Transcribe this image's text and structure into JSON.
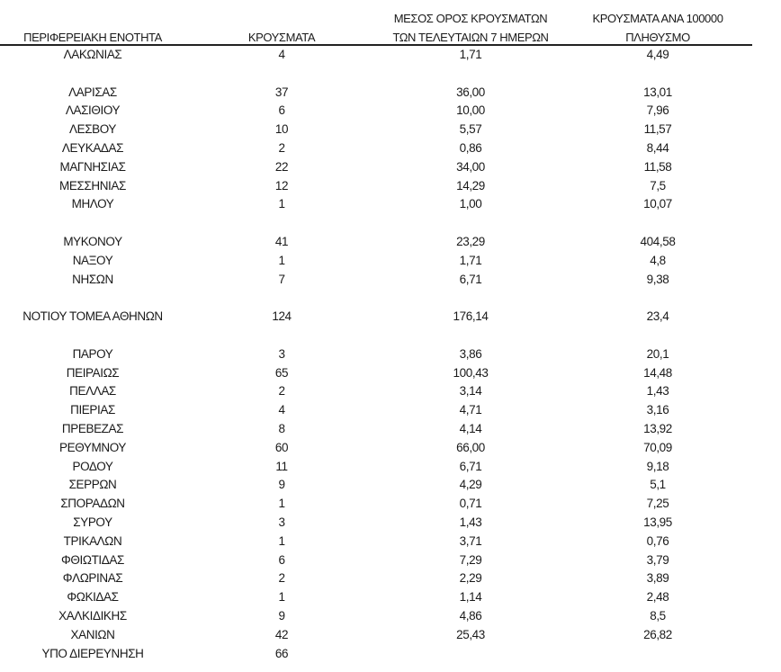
{
  "headers": {
    "region": "ΠΕΡΙΦΕΡΕΙΑΚΗ ΕΝΟΤΗΤΑ",
    "cases": "ΚΡΟΥΣΜΑΤΑ",
    "avg7_line1": "ΜΕΣΟΣ ΟΡΟΣ ΚΡΟΥΣΜΑΤΩΝ",
    "avg7_line2": "ΤΩΝ ΤΕΛΕΥΤΑΙΩΝ 7 ΗΜΕΡΩΝ",
    "per100k_line1": "ΚΡΟΥΣΜΑΤΑ ΑΝΑ 100000",
    "per100k_line2": "ΠΛΗΘΥΣΜΟ"
  },
  "rows": [
    {
      "region": "ΛΑΚΩΝΙΑΣ",
      "cases": "4",
      "avg7": "1,71",
      "per100k": "4,49"
    },
    {
      "region": "ΛΑΡΙΣΑΣ",
      "cases": "37",
      "avg7": "36,00",
      "per100k": "13,01"
    },
    {
      "region": "ΛΑΣΙΘΙΟΥ",
      "cases": "6",
      "avg7": "10,00",
      "per100k": "7,96"
    },
    {
      "region": "ΛΕΣΒΟΥ",
      "cases": "10",
      "avg7": "5,57",
      "per100k": "11,57"
    },
    {
      "region": "ΛΕΥΚΑΔΑΣ",
      "cases": "2",
      "avg7": "0,86",
      "per100k": "8,44"
    },
    {
      "region": "ΜΑΓΝΗΣΙΑΣ",
      "cases": "22",
      "avg7": "34,00",
      "per100k": "11,58"
    },
    {
      "region": "ΜΕΣΣΗΝΙΑΣ",
      "cases": "12",
      "avg7": "14,29",
      "per100k": "7,5"
    },
    {
      "region": "ΜΗΛΟΥ",
      "cases": "1",
      "avg7": "1,00",
      "per100k": "10,07"
    },
    {
      "region": "ΜΥΚΟΝΟΥ",
      "cases": "41",
      "avg7": "23,29",
      "per100k": "404,58"
    },
    {
      "region": "ΝΑΞΟΥ",
      "cases": "1",
      "avg7": "1,71",
      "per100k": "4,8"
    },
    {
      "region": "ΝΗΣΩΝ",
      "cases": "7",
      "avg7": "6,71",
      "per100k": "9,38"
    },
    {
      "region": "ΝΟΤΙΟΥ ΤΟΜΕΑ ΑΘΗΝΩΝ",
      "cases": "124",
      "avg7": "176,14",
      "per100k": "23,4"
    },
    {
      "region": "ΠΑΡΟΥ",
      "cases": "3",
      "avg7": "3,86",
      "per100k": "20,1"
    },
    {
      "region": "ΠΕΙΡΑΙΩΣ",
      "cases": "65",
      "avg7": "100,43",
      "per100k": "14,48"
    },
    {
      "region": "ΠΕΛΛΑΣ",
      "cases": "2",
      "avg7": "3,14",
      "per100k": "1,43"
    },
    {
      "region": "ΠΙΕΡΙΑΣ",
      "cases": "4",
      "avg7": "4,71",
      "per100k": "3,16"
    },
    {
      "region": "ΠΡΕΒΕΖΑΣ",
      "cases": "8",
      "avg7": "4,14",
      "per100k": "13,92"
    },
    {
      "region": "ΡΕΘΥΜΝΟΥ",
      "cases": "60",
      "avg7": "66,00",
      "per100k": "70,09"
    },
    {
      "region": "ΡΟΔΟΥ",
      "cases": "11",
      "avg7": "6,71",
      "per100k": "9,18"
    },
    {
      "region": "ΣΕΡΡΩΝ",
      "cases": "9",
      "avg7": "4,29",
      "per100k": "5,1"
    },
    {
      "region": "ΣΠΟΡΑΔΩΝ",
      "cases": "1",
      "avg7": "0,71",
      "per100k": "7,25"
    },
    {
      "region": "ΣΥΡΟΥ",
      "cases": "3",
      "avg7": "1,43",
      "per100k": "13,95"
    },
    {
      "region": "ΤΡΙΚΑΛΩΝ",
      "cases": "1",
      "avg7": "3,71",
      "per100k": "0,76"
    },
    {
      "region": "ΦΘΙΩΤΙΔΑΣ",
      "cases": "6",
      "avg7": "7,29",
      "per100k": "3,79"
    },
    {
      "region": "ΦΛΩΡΙΝΑΣ",
      "cases": "2",
      "avg7": "2,29",
      "per100k": "3,89"
    },
    {
      "region": "ΦΩΚΙΔΑΣ",
      "cases": "1",
      "avg7": "1,14",
      "per100k": "2,48"
    },
    {
      "region": "ΧΑΛΚΙΔΙΚΗΣ",
      "cases": "9",
      "avg7": "4,86",
      "per100k": "8,5"
    },
    {
      "region": "ΧΑΝΙΩΝ",
      "cases": "42",
      "avg7": "25,43",
      "per100k": "26,82"
    },
    {
      "region": "ΥΠΟ ΔΙΕΡΕΥΝΗΣΗ",
      "cases": "66",
      "avg7": "",
      "per100k": ""
    }
  ]
}
